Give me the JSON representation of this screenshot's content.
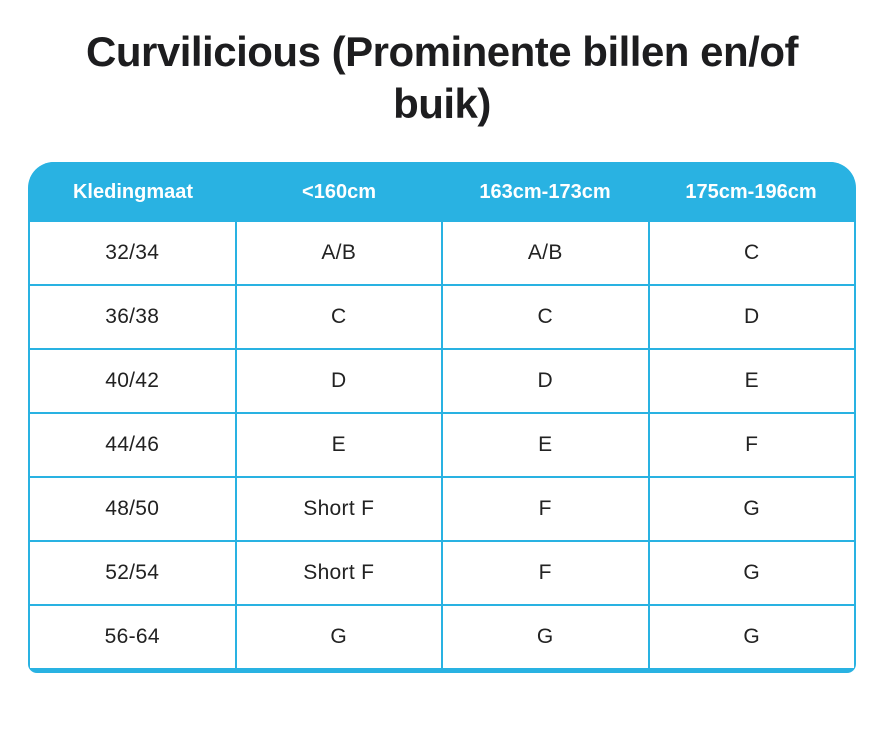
{
  "title": {
    "full": "Curvilicious (Prominente billen en/of buik)",
    "line1": "Curvilicious (Prominente billen en/of",
    "line2": "buik)"
  },
  "colors": {
    "accent": "#29b2e2",
    "title_text": "#1d1d1f",
    "header_text": "#ffffff",
    "cell_text": "#222222"
  },
  "table": {
    "headers": [
      "Kledingmaat",
      "<160cm",
      "163cm-173cm",
      "175cm-196cm"
    ],
    "rows": [
      [
        "32/34",
        "A/B",
        "A/B",
        "C"
      ],
      [
        "36/38",
        "C",
        "C",
        "D"
      ],
      [
        "40/42",
        "D",
        "D",
        "E"
      ],
      [
        "44/46",
        "E",
        "E",
        "F"
      ],
      [
        "48/50",
        "Short F",
        "F",
        "G"
      ],
      [
        "52/54",
        "Short F",
        "F",
        "G"
      ],
      [
        "56-64",
        "G",
        "G",
        "G"
      ]
    ]
  }
}
